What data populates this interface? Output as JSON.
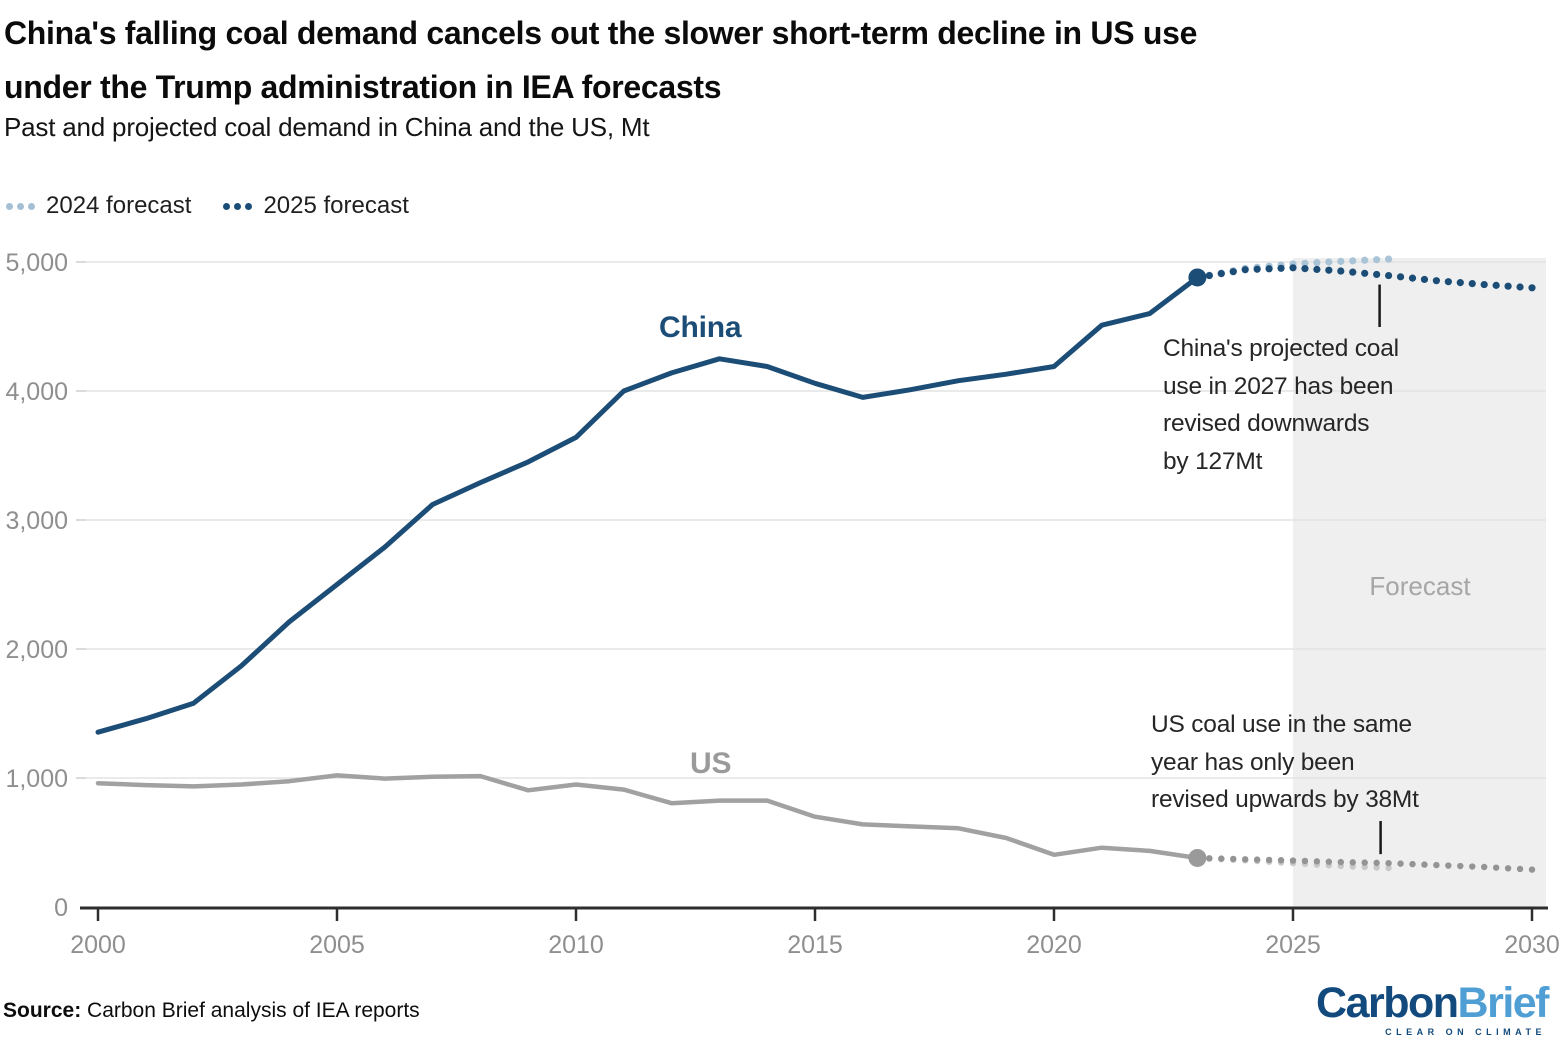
{
  "header": {
    "title_lines": [
      "China's falling coal demand cancels out the slower short-term decline in US use",
      "under the Trump administration in IEA forecasts"
    ],
    "subtitle": "Past and projected coal demand in China and the US, Mt"
  },
  "legend": {
    "items": [
      {
        "label": "2024 forecast",
        "color": "#a5bfd4"
      },
      {
        "label": "2025 forecast",
        "color": "#1c4d77"
      }
    ]
  },
  "chart_data": {
    "type": "line",
    "title": "Past and projected coal demand in China and the US, Mt",
    "ylabel": "Mt",
    "x_axis": {
      "range": [
        2000,
        2030
      ],
      "ticks": [
        2000,
        2005,
        2010,
        2015,
        2020,
        2025,
        2030
      ]
    },
    "y_axis": {
      "range": [
        0,
        5000
      ],
      "ticks": [
        0,
        1000,
        2000,
        3000,
        4000,
        5000
      ],
      "tick_labels": [
        "0",
        "1,000",
        "2,000",
        "3,000",
        "4,000",
        "5,000"
      ]
    },
    "grid": true,
    "forecast_band": {
      "start_year": 2025,
      "end_year": 2030,
      "label": "Forecast",
      "color": "#efefef"
    },
    "series": [
      {
        "name": "China",
        "style": "solid",
        "color": "#1c4d77",
        "width": 5,
        "x": [
          2000,
          2001,
          2002,
          2003,
          2004,
          2005,
          2006,
          2007,
          2008,
          2009,
          2010,
          2011,
          2012,
          2013,
          2014,
          2015,
          2016,
          2017,
          2018,
          2019,
          2020,
          2021,
          2022,
          2023
        ],
        "values": [
          1355,
          1460,
          1580,
          1870,
          2210,
          2500,
          2790,
          3120,
          3290,
          3450,
          3640,
          4000,
          4140,
          4250,
          4190,
          4060,
          3950,
          4010,
          4080,
          4130,
          4190,
          4510,
          4600,
          4880
        ]
      },
      {
        "name": "US",
        "style": "solid",
        "color": "#a1a1a1",
        "width": 4.5,
        "x": [
          2000,
          2001,
          2002,
          2003,
          2004,
          2005,
          2006,
          2007,
          2008,
          2009,
          2010,
          2011,
          2012,
          2013,
          2014,
          2015,
          2016,
          2017,
          2018,
          2019,
          2020,
          2021,
          2022,
          2023
        ],
        "values": [
          960,
          945,
          935,
          950,
          975,
          1020,
          995,
          1010,
          1015,
          905,
          950,
          910,
          805,
          825,
          825,
          700,
          640,
          625,
          610,
          535,
          405,
          460,
          435,
          380
        ]
      },
      {
        "name": "China 2024 forecast",
        "style": "dotted",
        "color": "#a9c3d7",
        "dot_radius": 3.6,
        "x": [
          2023,
          2024,
          2025,
          2026,
          2027
        ],
        "values": [
          4880,
          4950,
          4985,
          5005,
          5022
        ]
      },
      {
        "name": "China 2025 forecast",
        "style": "dotted",
        "color": "#1c4d77",
        "dot_radius": 3.6,
        "x": [
          2023,
          2024,
          2025,
          2026,
          2027,
          2028,
          2029,
          2030
        ],
        "values": [
          4880,
          4940,
          4955,
          4930,
          4895,
          4855,
          4825,
          4800
        ]
      },
      {
        "name": "US 2024 forecast",
        "style": "dotted",
        "color": "#c9c9c9",
        "dot_radius": 3.2,
        "x": [
          2023,
          2024,
          2025,
          2026,
          2027
        ],
        "values": [
          380,
          362,
          340,
          318,
          302
        ]
      },
      {
        "name": "US 2025 forecast",
        "style": "dotted",
        "color": "#949494",
        "dot_radius": 3.2,
        "x": [
          2023,
          2024,
          2025,
          2026,
          2027,
          2028,
          2029,
          2030
        ],
        "values": [
          380,
          370,
          360,
          348,
          340,
          325,
          310,
          290
        ]
      }
    ],
    "endpoints": [
      {
        "series": "China",
        "year": 2023,
        "value": 4880,
        "color": "#1c4d77",
        "radius": 9
      },
      {
        "series": "US",
        "year": 2023,
        "value": 380,
        "color": "#9a9a9a",
        "radius": 9
      }
    ],
    "series_labels": [
      {
        "text": "China",
        "color": "#1c4d77"
      },
      {
        "text": "US",
        "color": "#9a9a9a"
      }
    ],
    "annotations": [
      {
        "id": "china",
        "lines": [
          "China's projected coal",
          "use in 2027 has been",
          "revised downwards",
          "by 127Mt"
        ],
        "callout_year": 2027
      },
      {
        "id": "us",
        "lines": [
          "US coal use in the same",
          "year has only been",
          "revised upwards by 38Mt"
        ],
        "callout_year": 2027
      }
    ]
  },
  "footer": {
    "source_label": "Source:",
    "source_text": " Carbon Brief analysis of IEA reports",
    "logo": {
      "part1": "Carbon",
      "part2": "Brief",
      "tagline": "CLEAR ON CLIMATE"
    }
  }
}
